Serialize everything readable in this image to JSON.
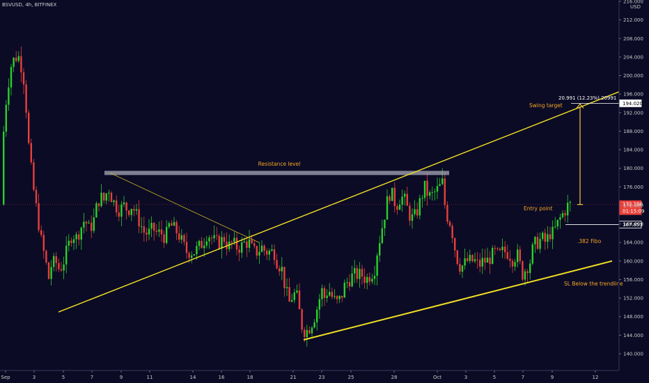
{
  "header": {
    "title": "BSVUSD, 4h, BITFINEX"
  },
  "axis": {
    "currency": "USD"
  },
  "chart_data": {
    "type": "candlestick",
    "y_ticks": [
      "216.000",
      "212.000",
      "208.000",
      "204.000",
      "200.000",
      "196.000",
      "192.000",
      "188.000",
      "184.000",
      "180.000",
      "176.000",
      "172.000",
      "168.000",
      "164.000",
      "160.000",
      "156.000",
      "152.000",
      "148.000",
      "144.000",
      "140.000"
    ],
    "x_ticks": [
      "Sep",
      "3",
      "5",
      "7",
      "9",
      "11",
      "14",
      "16",
      "18",
      "21",
      "23",
      "25",
      "28",
      "Oct",
      "3",
      "5",
      "7",
      "9",
      "12"
    ],
    "ylim": [
      137,
      218
    ],
    "annotations": {
      "resistance": "Resistance level",
      "swing_target": "Swing target",
      "entry_point": "Entry point",
      "fibo": ".382 Fibo",
      "sl": "SL Below the trendline",
      "measure": "20.991 (12.23%) 20991"
    },
    "price_boxes": {
      "target": "194.020",
      "current": "172.190",
      "timer": "01:15:09",
      "fibo": "167.853"
    },
    "resistance_level": 179,
    "current_price": 172.19,
    "target_price": 194.02,
    "fibo_price": 167.853
  }
}
